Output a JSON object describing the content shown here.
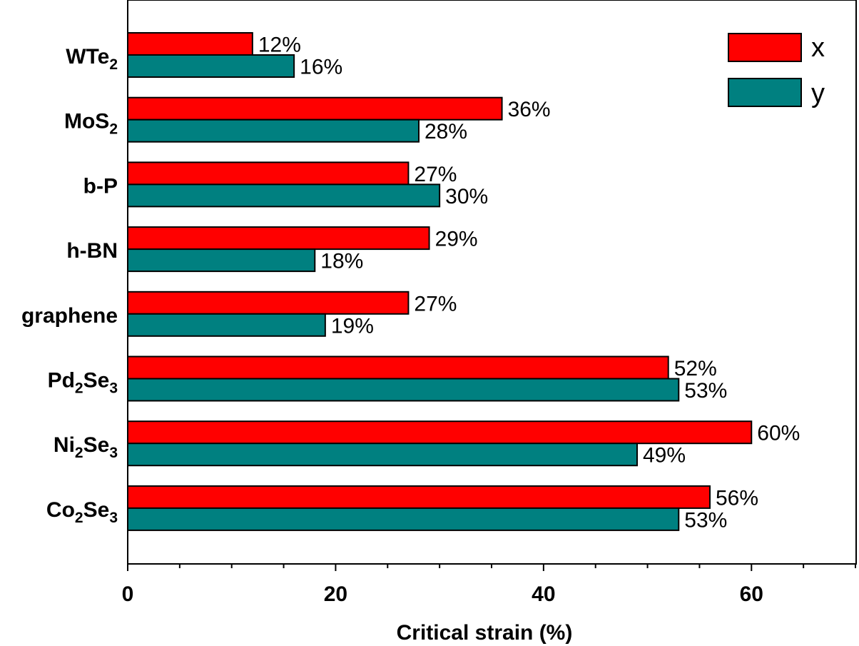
{
  "chart_data": {
    "type": "bar",
    "orientation": "horizontal",
    "categories": [
      {
        "base": "WTe",
        "sub1": "2",
        "mid": "",
        "sub2": ""
      },
      {
        "base": "MoS",
        "sub1": "2",
        "mid": "",
        "sub2": ""
      },
      {
        "base": "b-P",
        "sub1": "",
        "mid": "",
        "sub2": ""
      },
      {
        "base": "h-BN",
        "sub1": "",
        "mid": "",
        "sub2": ""
      },
      {
        "base": "graphene",
        "sub1": "",
        "mid": "",
        "sub2": ""
      },
      {
        "base": "Pd",
        "sub1": "2",
        "mid": "Se",
        "sub2": "3"
      },
      {
        "base": "Ni",
        "sub1": "2",
        "mid": "Se",
        "sub2": "3"
      },
      {
        "base": "Co",
        "sub1": "2",
        "mid": "Se",
        "sub2": "3"
      }
    ],
    "series": [
      {
        "name": "x",
        "color": "#ff0000",
        "values": [
          12,
          36,
          27,
          29,
          27,
          52,
          60,
          56
        ],
        "labels": [
          "12%",
          "36%",
          "27%",
          "29%",
          "27%",
          "52%",
          "60%",
          "56%"
        ]
      },
      {
        "name": "y",
        "color": "#008080",
        "values": [
          16,
          28,
          30,
          18,
          19,
          53,
          49,
          53
        ],
        "labels": [
          "16%",
          "28%",
          "30%",
          "18%",
          "19%",
          "53%",
          "49%",
          "53%"
        ]
      }
    ],
    "xlabel": "Critical strain (%)",
    "xlim": [
      0,
      70
    ],
    "xticks": [
      0,
      20,
      40,
      60
    ],
    "xtick_labels": [
      "0",
      "20",
      "40",
      "60"
    ],
    "minor_tick_step": 5,
    "legend_position": "top-right"
  }
}
